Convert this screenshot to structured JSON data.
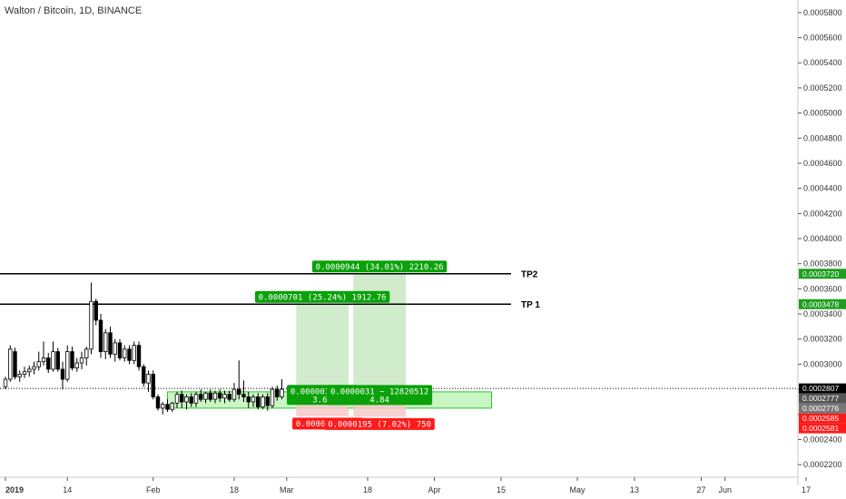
{
  "chart_data": {
    "type": "candlestick",
    "title": "Walton / Bitcoin, 1D, BINANCE",
    "ylim": [
      0.00021,
      0.00059
    ],
    "y_ticks": [
      "0.0005800",
      "0.0005600",
      "0.0005400",
      "0.0005200",
      "0.0005000",
      "0.0004800",
      "0.0004600",
      "0.0004400",
      "0.0004200",
      "0.0004000",
      "0.0003800",
      "0.0003600",
      "0.0003400",
      "0.0003200",
      "0.0003000",
      "0.0002800",
      "0.0002600",
      "0.0002400",
      "0.0002200"
    ],
    "x_ticks": [
      {
        "label": "2019",
        "bold": true,
        "x": 0
      },
      {
        "label": "14",
        "x": 13
      },
      {
        "label": "Feb",
        "x": 31
      },
      {
        "label": "18",
        "x": 48
      },
      {
        "label": "Mar",
        "x": 59
      },
      {
        "label": "18",
        "x": 76
      },
      {
        "label": "Apr",
        "x": 90
      },
      {
        "label": "15",
        "x": 104
      },
      {
        "label": "May",
        "x": 120
      },
      {
        "label": "13",
        "x": 132
      },
      {
        "label": "27",
        "x": 146
      },
      {
        "label": "Jun",
        "x": 151
      },
      {
        "label": "17",
        "x": 168
      }
    ],
    "candles": [
      [
        0.000282,
        0.00029,
        0.00028,
        0.000288
      ],
      [
        0.000288,
        0.000315,
        0.000286,
        0.000312
      ],
      [
        0.00031,
        0.000313,
        0.000288,
        0.00029
      ],
      [
        0.00029,
        0.000295,
        0.000286,
        0.000292
      ],
      [
        0.000292,
        0.000298,
        0.000289,
        0.000294
      ],
      [
        0.000294,
        0.000299,
        0.00029,
        0.000296
      ],
      [
        0.000296,
        0.000302,
        0.000292,
        0.000298
      ],
      [
        0.000298,
        0.00031,
        0.000295,
        0.000302
      ],
      [
        0.000302,
        0.000318,
        0.000299,
        0.000305
      ],
      [
        0.000305,
        0.000309,
        0.000293,
        0.000296
      ],
      [
        0.000296,
        0.000318,
        0.000294,
        0.00031
      ],
      [
        0.00031,
        0.000313,
        0.000294,
        0.000296
      ],
      [
        0.000296,
        0.000302,
        0.00028,
        0.000288
      ],
      [
        0.000288,
        0.000315,
        0.000286,
        0.00031
      ],
      [
        0.00031,
        0.000314,
        0.000295,
        0.000297
      ],
      [
        0.000297,
        0.000305,
        0.000294,
        0.000301
      ],
      [
        0.000301,
        0.00031,
        0.000296,
        0.000305
      ],
      [
        0.000305,
        0.000314,
        0.000299,
        0.000312
      ],
      [
        0.000312,
        0.000365,
        0.000308,
        0.00035
      ],
      [
        0.00035,
        0.000352,
        0.000331,
        0.000335
      ],
      [
        0.000335,
        0.00034,
        0.000305,
        0.00031
      ],
      [
        0.00031,
        0.000328,
        0.000304,
        0.000325
      ],
      [
        0.000325,
        0.00033,
        0.000305,
        0.000308
      ],
      [
        0.000308,
        0.00032,
        0.000302,
        0.000317
      ],
      [
        0.000317,
        0.00032,
        0.000303,
        0.000305
      ],
      [
        0.000305,
        0.000315,
        0.000302,
        0.000312
      ],
      [
        0.000312,
        0.000315,
        0.0003,
        0.000303
      ],
      [
        0.000303,
        0.000318,
        0.0003,
        0.000315
      ],
      [
        0.000315,
        0.000318,
        0.000295,
        0.000298
      ],
      [
        0.000298,
        0.0003,
        0.000282,
        0.000285
      ],
      [
        0.000285,
        0.000295,
        0.000278,
        0.000292
      ],
      [
        0.000292,
        0.000295,
        0.000272,
        0.000274
      ],
      [
        0.000274,
        0.000276,
        0.000263,
        0.000265
      ],
      [
        0.000265,
        0.00027,
        0.00026,
        0.000268
      ],
      [
        0.000268,
        0.000272,
        0.000262,
        0.000264
      ],
      [
        0.000264,
        0.00027,
        0.000262,
        0.000269
      ],
      [
        0.000269,
        0.000278,
        0.000265,
        0.000276
      ],
      [
        0.000276,
        0.000279,
        0.000265,
        0.00027
      ],
      [
        0.00027,
        0.000276,
        0.000264,
        0.000274
      ],
      [
        0.000274,
        0.000277,
        0.000266,
        0.000269
      ],
      [
        0.000269,
        0.000278,
        0.000266,
        0.000276
      ],
      [
        0.000276,
        0.00028,
        0.00027,
        0.000272
      ],
      [
        0.000272,
        0.000278,
        0.000269,
        0.000277
      ],
      [
        0.000277,
        0.00028,
        0.00027,
        0.000272
      ],
      [
        0.000272,
        0.000279,
        0.000269,
        0.000277
      ],
      [
        0.000277,
        0.00028,
        0.00027,
        0.000273
      ],
      [
        0.000273,
        0.000279,
        0.000269,
        0.000276
      ],
      [
        0.000276,
        0.000279,
        0.00027,
        0.000272
      ],
      [
        0.000272,
        0.000285,
        0.00027,
        0.00028
      ],
      [
        0.00028,
        0.000303,
        0.000272,
        0.000276
      ],
      [
        0.000276,
        0.000287,
        0.00027,
        0.000274
      ],
      [
        0.000274,
        0.000278,
        0.000265,
        0.00027
      ],
      [
        0.00027,
        0.000276,
        0.000266,
        0.000274
      ],
      [
        0.000274,
        0.000277,
        0.000264,
        0.000266
      ],
      [
        0.000266,
        0.000276,
        0.000264,
        0.000274
      ],
      [
        0.000274,
        0.000277,
        0.000263,
        0.000267
      ],
      [
        0.000267,
        0.000282,
        0.000265,
        0.00028
      ],
      [
        0.00028,
        0.000283,
        0.000271,
        0.000274
      ],
      [
        0.000274,
        0.000288,
        0.000272,
        0.00028
      ]
    ],
    "current_price_line": {
      "value": 0.0002807
    },
    "tp_lines": [
      {
        "name": "TP2",
        "value": 0.000372
      },
      {
        "name": "TP 1",
        "value": 0.0003478
      }
    ],
    "positions": [
      {
        "start": 61,
        "end": 72,
        "entry": 0.0002777,
        "target": 0.0003478,
        "stop": 0.0002585,
        "target_label": "0.0000701 (25.24%) 1912.76",
        "stop_label": "0.0000192 (6.",
        "center_label_1": "0.0000030 ~ 1",
        "center_label_2": "3.65"
      },
      {
        "start": 73,
        "end": 84,
        "entry": 0.0002776,
        "target": 0.000372,
        "stop": 0.0002581,
        "target_label": "0.0000944 (34.01%) 2210.26",
        "stop_label": "0.0000195 (7.02%) 750",
        "center_label_1": "0.0000031 ~ 12820512",
        "center_label_2": "4.84"
      }
    ],
    "support_zone": {
      "start": 34,
      "end": 102,
      "top": 0.000278,
      "bottom": 0.000265
    },
    "price_badges": [
      {
        "label": "0.0003720",
        "value": 0.000372,
        "color": "#1e9e1e"
      },
      {
        "label": "0.0003478",
        "value": 0.0003478,
        "color": "#1e9e1e"
      },
      {
        "label": "0.0002807",
        "value": 0.0002807,
        "color": "#000000"
      },
      {
        "label": "0.0002777",
        "value": 0.0002777,
        "color": "#555555"
      },
      {
        "label": "0.0002776",
        "value": 0.0002776,
        "color": "#777777"
      },
      {
        "label": "0.0002585",
        "value": 0.0002585,
        "color": "#ff1a1a"
      },
      {
        "label": "0.0002581",
        "value": 0.0002581,
        "color": "#ff1a1a"
      }
    ],
    "colors": {
      "up": "#ffffff",
      "down": "#000000",
      "wick": "#000000",
      "tp_line": "#000000",
      "target_zone": "#c9e8c4",
      "stop_zone": "#f6c9c9",
      "label_green": "#0aa10a",
      "label_red": "#ff1a1a",
      "support_fill": "#b8f2b0",
      "support_stroke": "#31c331"
    }
  }
}
